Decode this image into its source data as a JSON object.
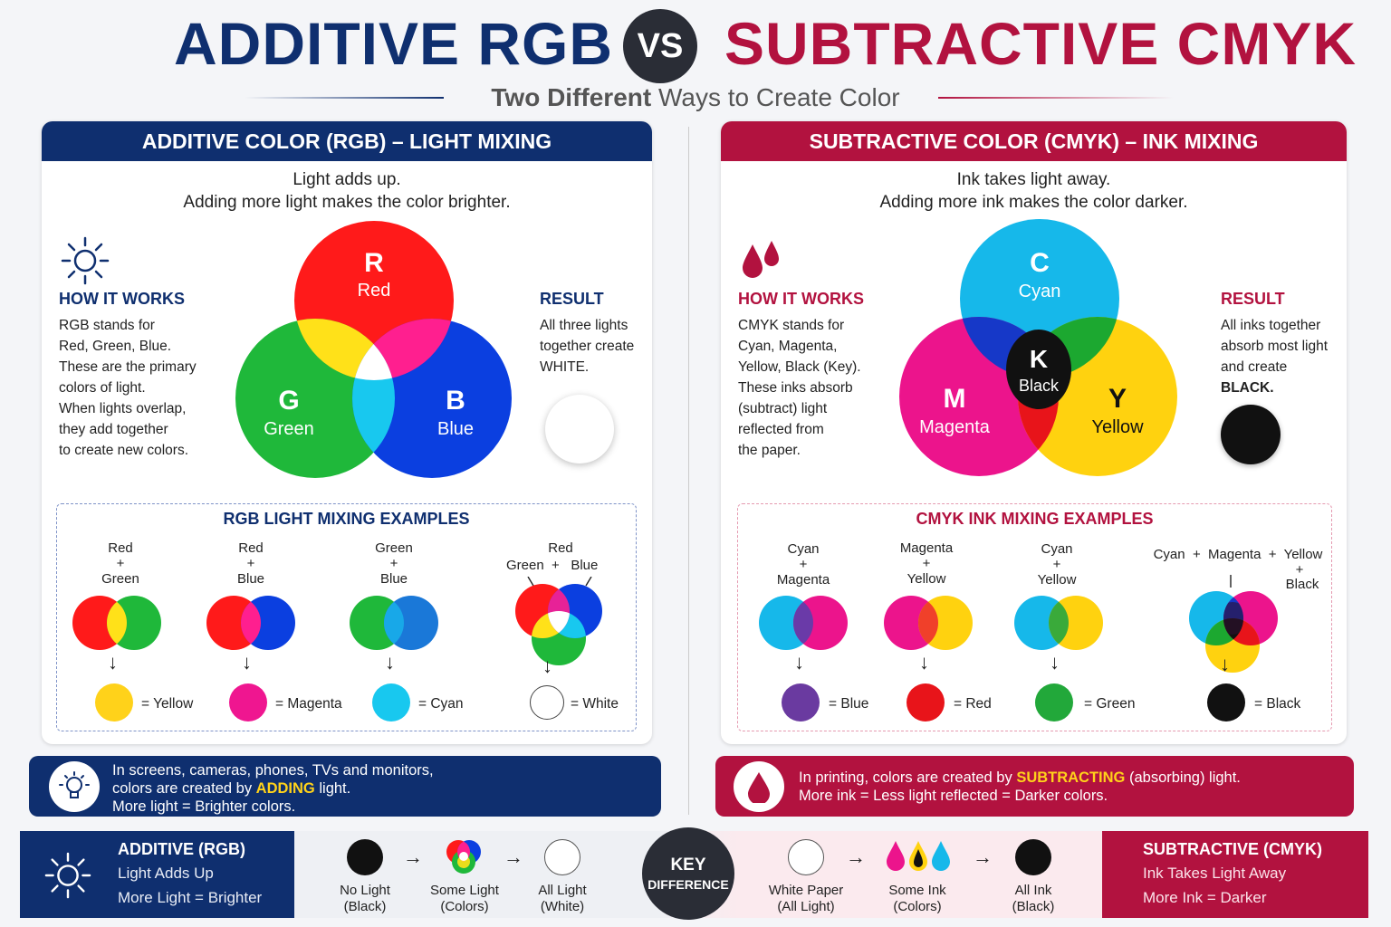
{
  "header": {
    "left_title": "ADDITIVE RGB",
    "vs": "VS",
    "right_title": "SUBTRACTIVE CMYK",
    "subtitle_bold": "Two Different",
    "subtitle_rest": "Ways to Create Color"
  },
  "rgb": {
    "panel_title": "ADDITIVE COLOR (RGB) – LIGHT MIXING",
    "lead1": "Light adds up.",
    "lead2": "Adding more light makes the color brighter.",
    "how_title": "HOW IT WORKS",
    "how_lines": [
      "RGB stands for",
      "Red, Green, Blue.",
      "These are the primary",
      "colors of light.",
      "When lights overlap,",
      "they add together",
      "to create new colors."
    ],
    "result_title": "RESULT",
    "result_lines": [
      "All three lights",
      "together create",
      "WHITE."
    ],
    "venn": {
      "r_letter": "R",
      "r_name": "Red",
      "g_letter": "G",
      "g_name": "Green",
      "b_letter": "B",
      "b_name": "Blue"
    },
    "examples_title": "RGB LIGHT MIXING EXAMPLES",
    "examples": [
      {
        "top": "Red",
        "plus": "+",
        "bottom": "Green",
        "result": "= Yellow"
      },
      {
        "top": "Red",
        "plus": "+",
        "bottom": "Blue",
        "result": "= Magenta"
      },
      {
        "top": "Green",
        "plus": "+",
        "bottom": "Blue",
        "result": "= Cyan"
      },
      {
        "top": "Red",
        "left": "Green",
        "plus": "+",
        "right": "Blue",
        "result": "= White"
      }
    ],
    "bar_line1": "In screens, cameras, phones, TVs and monitors,",
    "bar_line2a": "colors are created by",
    "bar_line2b": "ADDING",
    "bar_line2c": "light.",
    "bar_line3": "More light = Brighter colors."
  },
  "cmyk": {
    "panel_title": "SUBTRACTIVE COLOR (CMYK) – INK MIXING",
    "lead1": "Ink takes light away.",
    "lead2": "Adding more ink makes the color darker.",
    "how_title": "HOW IT WORKS",
    "how_lines": [
      "CMYK stands for",
      "Cyan, Magenta,",
      "Yellow, Black (Key).",
      "These inks absorb",
      "(subtract) light",
      "reflected from",
      "the paper."
    ],
    "result_title": "RESULT",
    "result_lines": [
      "All inks together",
      "absorb most light",
      "and create",
      "BLACK."
    ],
    "venn": {
      "c_letter": "C",
      "c_name": "Cyan",
      "m_letter": "M",
      "m_name": "Magenta",
      "y_letter": "Y",
      "y_name": "Yellow",
      "k_letter": "K",
      "k_name": "Black"
    },
    "examples_title": "CMYK INK MIXING EXAMPLES",
    "examples": [
      {
        "top": "Cyan",
        "plus": "+",
        "bottom": "Magenta",
        "result": "= Blue"
      },
      {
        "top": "Magenta",
        "plus": "+",
        "bottom": "Yellow",
        "result": "= Red"
      },
      {
        "top": "Cyan",
        "plus": "+",
        "bottom": "Yellow",
        "result": "= Green"
      },
      {
        "top": "Cyan  +  Magenta  +  Yellow",
        "plus": "+",
        "bottom": "Black",
        "result": "= Black"
      }
    ],
    "bar_line1a": "In printing, colors are created by",
    "bar_line1b": "SUBTRACTING",
    "bar_line1c": "(absorbing) light.",
    "bar_line2": "More ink = Less light reflected = Darker colors."
  },
  "bottom": {
    "left_title": "ADDITIVE (RGB)",
    "left_l1": "Light Adds Up",
    "left_l2": "More Light = Brighter",
    "items_left": [
      {
        "l1": "No Light",
        "l2": "(Black)"
      },
      {
        "l1": "Some Light",
        "l2": "(Colors)"
      },
      {
        "l1": "All Light",
        "l2": "(White)"
      }
    ],
    "key1": "KEY",
    "key2": "DIFFERENCE",
    "items_right": [
      {
        "l1": "White Paper",
        "l2": "(All Light)"
      },
      {
        "l1": "Some Ink",
        "l2": "(Colors)"
      },
      {
        "l1": "All Ink",
        "l2": "(Black)"
      }
    ],
    "right_title": "SUBTRACTIVE (CMYK)",
    "right_l1": "Ink Takes Light Away",
    "right_l2": "More Ink = Darker",
    "arrow": "→"
  },
  "colors": {
    "rgb_navy": "#0f2f6f",
    "cmyk_crimson": "#b2123f",
    "highlight": "#ffd21a"
  }
}
